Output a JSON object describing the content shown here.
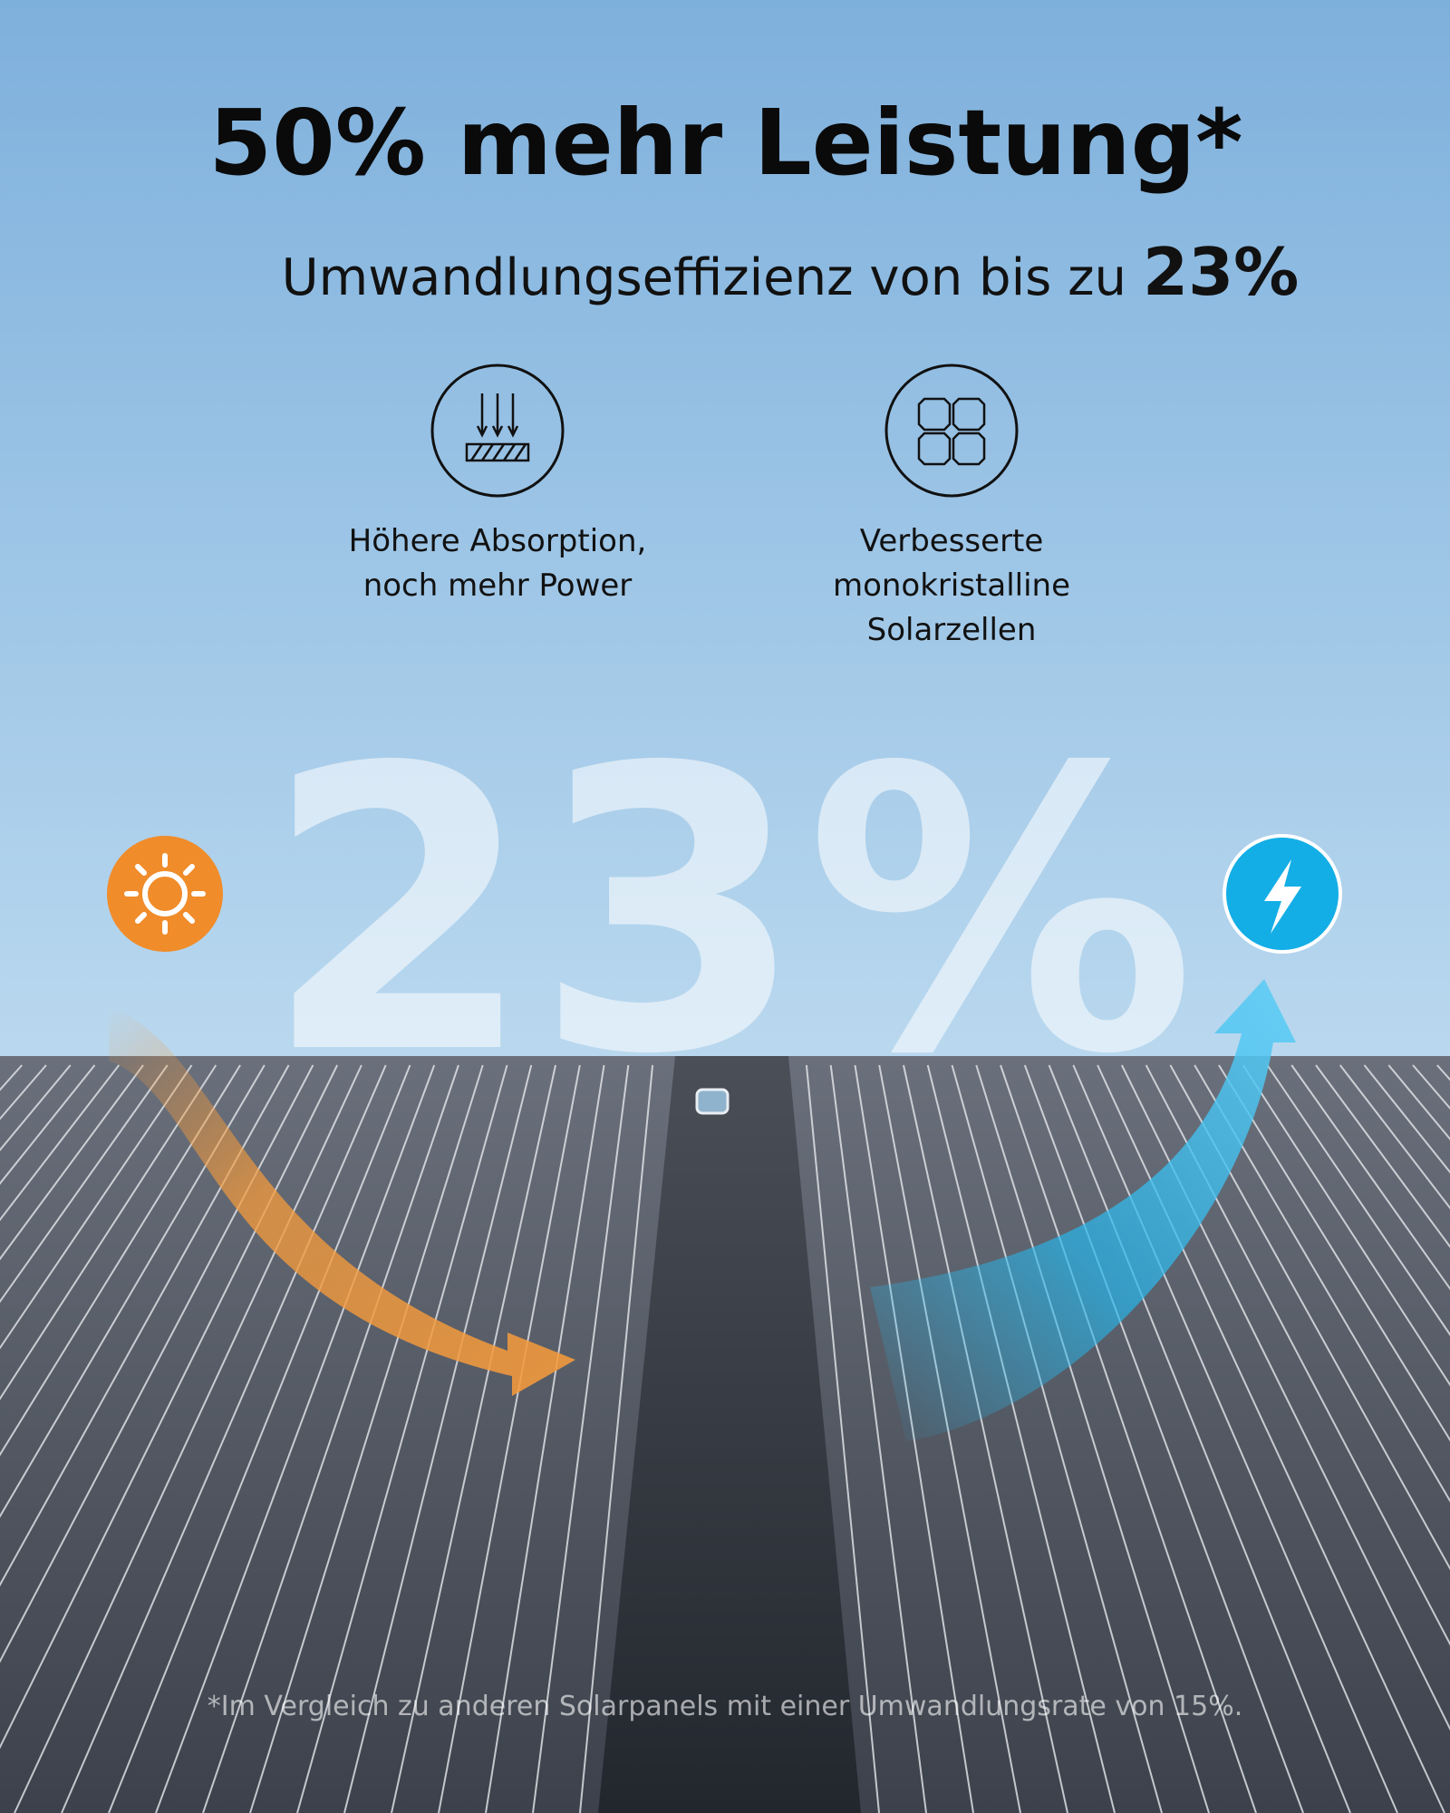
{
  "header": {
    "title": "50% mehr Leistung*",
    "subtitle": "Umwandlungseffizienz von bis zu",
    "subtitle_highlight": "23%"
  },
  "features": [
    {
      "lines": [
        "Höhere Absorption,",
        "noch mehr Power"
      ]
    },
    {
      "lines": [
        "Verbesserte",
        "monokristalline",
        "Solarzellen"
      ]
    }
  ],
  "watermark": "23%",
  "footnote": "*Im Vergleich zu anderen Solarpanels mit einer Umwandlungsrate von 15%."
}
